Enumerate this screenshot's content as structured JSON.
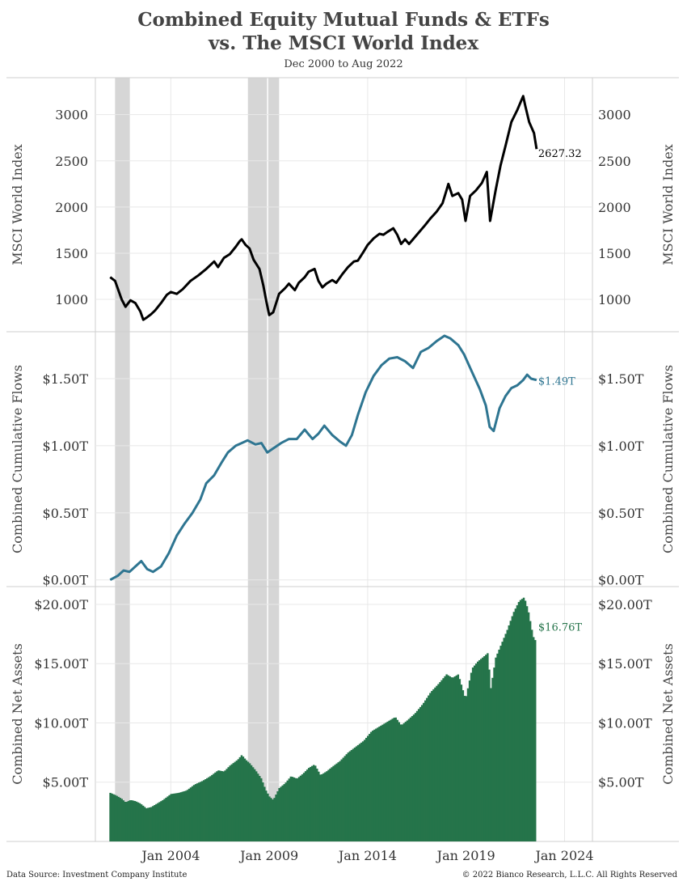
{
  "title_line1": "Combined Equity Mutual Funds & ETFs",
  "title_line2": "vs. The MSCI World Index",
  "subtitle": "Dec 2000 to Aug 2022",
  "footer_source": "Data Source: Investment Company Institute",
  "footer_copyright": "© 2022 Bianco Research, L.L.C. All Rights Reserved",
  "colors": {
    "msci": "#000000",
    "flows": "#2e7591",
    "assets": "#25744a",
    "recession": "#d6d6d6",
    "grid": "#e8e8e8"
  },
  "chart_data": {
    "type": "line",
    "x_ticks": [
      "Jan 2004",
      "Jan 2009",
      "Jan 2014",
      "Jan 2019",
      "Jan 2024"
    ],
    "x_range": [
      "2000-03",
      "2025-06"
    ],
    "recessions": [
      [
        "2001-03",
        "2001-11"
      ],
      [
        "2007-12",
        "2009-06"
      ]
    ],
    "panels": [
      {
        "id": "msci",
        "ylabel": "MSCI World Index",
        "ytick_labels": [
          "1000",
          "1500",
          "2000",
          "2500",
          "3000"
        ],
        "ytick_values": [
          1000,
          1500,
          2000,
          2500,
          3000
        ],
        "ylim": [
          650,
          3400
        ],
        "last_label": "2627.32",
        "series": {
          "x": [
            2000.92,
            2001.17,
            2001.5,
            2001.7,
            2001.95,
            2002.2,
            2002.45,
            2002.6,
            2002.75,
            2003.0,
            2003.2,
            2003.5,
            2003.8,
            2004.0,
            2004.3,
            2004.6,
            2005.0,
            2005.4,
            2005.8,
            2006.2,
            2006.4,
            2006.7,
            2007.0,
            2007.3,
            2007.5,
            2007.6,
            2007.8,
            2008.0,
            2008.2,
            2008.5,
            2008.7,
            2008.85,
            2009.0,
            2009.2,
            2009.5,
            2009.8,
            2010.0,
            2010.3,
            2010.5,
            2010.8,
            2011.0,
            2011.3,
            2011.5,
            2011.7,
            2011.9,
            2012.2,
            2012.4,
            2012.7,
            2013.0,
            2013.3,
            2013.5,
            2013.8,
            2014.0,
            2014.3,
            2014.6,
            2014.8,
            2015.0,
            2015.3,
            2015.5,
            2015.7,
            2015.9,
            2016.1,
            2016.5,
            2016.9,
            2017.2,
            2017.5,
            2017.8,
            2018.0,
            2018.1,
            2018.3,
            2018.6,
            2018.8,
            2018.97,
            2019.2,
            2019.5,
            2019.8,
            2020.05,
            2020.22,
            2020.5,
            2020.75,
            2021.0,
            2021.3,
            2021.6,
            2021.9,
            2022.0,
            2022.2,
            2022.45,
            2022.58
          ],
          "values": [
            1240,
            1200,
            1000,
            920,
            990,
            960,
            870,
            780,
            800,
            840,
            880,
            960,
            1050,
            1080,
            1060,
            1110,
            1200,
            1260,
            1330,
            1410,
            1350,
            1450,
            1490,
            1570,
            1630,
            1650,
            1590,
            1550,
            1430,
            1330,
            1150,
            980,
            830,
            860,
            1060,
            1120,
            1170,
            1100,
            1180,
            1240,
            1300,
            1330,
            1200,
            1130,
            1170,
            1210,
            1180,
            1270,
            1350,
            1410,
            1420,
            1520,
            1590,
            1660,
            1710,
            1700,
            1730,
            1770,
            1700,
            1600,
            1650,
            1600,
            1700,
            1800,
            1880,
            1950,
            2040,
            2180,
            2250,
            2120,
            2150,
            2080,
            1850,
            2120,
            2180,
            2260,
            2380,
            1850,
            2180,
            2450,
            2660,
            2920,
            3050,
            3200,
            3100,
            2920,
            2800,
            2627.32
          ]
        }
      },
      {
        "id": "flows",
        "ylabel": "Combined Cumulative Flows",
        "ytick_labels": [
          "$0.00T",
          "$0.50T",
          "$1.00T",
          "$1.50T"
        ],
        "ytick_values": [
          0,
          0.5,
          1.0,
          1.5
        ],
        "ylim": [
          -0.05,
          1.85
        ],
        "last_label": "$1.49T",
        "series": {
          "x": [
            2000.92,
            2001.3,
            2001.6,
            2001.9,
            2002.2,
            2002.5,
            2002.8,
            2003.1,
            2003.5,
            2003.9,
            2004.3,
            2004.7,
            2005.1,
            2005.5,
            2005.8,
            2006.2,
            2006.6,
            2006.9,
            2007.3,
            2007.6,
            2007.9,
            2008.3,
            2008.6,
            2008.9,
            2009.2,
            2009.6,
            2010.0,
            2010.4,
            2010.8,
            2011.2,
            2011.5,
            2011.8,
            2012.2,
            2012.6,
            2012.9,
            2013.2,
            2013.5,
            2013.9,
            2014.3,
            2014.7,
            2015.1,
            2015.5,
            2015.9,
            2016.3,
            2016.7,
            2017.1,
            2017.5,
            2017.9,
            2018.2,
            2018.6,
            2018.9,
            2019.3,
            2019.7,
            2020.0,
            2020.2,
            2020.4,
            2020.7,
            2021.0,
            2021.3,
            2021.6,
            2021.9,
            2022.1,
            2022.3,
            2022.58
          ],
          "values": [
            0.0,
            0.03,
            0.07,
            0.06,
            0.1,
            0.14,
            0.08,
            0.06,
            0.1,
            0.2,
            0.33,
            0.42,
            0.5,
            0.6,
            0.72,
            0.78,
            0.88,
            0.95,
            1.0,
            1.02,
            1.04,
            1.01,
            1.02,
            0.95,
            0.98,
            1.02,
            1.05,
            1.05,
            1.12,
            1.05,
            1.09,
            1.15,
            1.08,
            1.03,
            1.0,
            1.08,
            1.23,
            1.4,
            1.52,
            1.6,
            1.65,
            1.66,
            1.63,
            1.58,
            1.7,
            1.73,
            1.78,
            1.82,
            1.8,
            1.75,
            1.68,
            1.55,
            1.42,
            1.3,
            1.14,
            1.11,
            1.28,
            1.37,
            1.43,
            1.45,
            1.49,
            1.53,
            1.5,
            1.49
          ]
        }
      },
      {
        "id": "assets",
        "ylabel": "Combined Net Assets",
        "ytick_labels": [
          "$5.00T",
          "$10.00T",
          "$15.00T",
          "$20.00T"
        ],
        "ytick_values": [
          5,
          10,
          15,
          20
        ],
        "ylim": [
          0,
          21.5
        ],
        "last_label": "$16.76T",
        "series": {
          "x": [
            2000.92,
            2001.2,
            2001.5,
            2001.7,
            2001.95,
            2002.2,
            2002.45,
            2002.75,
            2003.0,
            2003.3,
            2003.6,
            2004.0,
            2004.4,
            2004.8,
            2005.2,
            2005.6,
            2006.0,
            2006.4,
            2006.7,
            2007.0,
            2007.4,
            2007.6,
            2007.8,
            2008.0,
            2008.3,
            2008.6,
            2008.8,
            2009.0,
            2009.2,
            2009.5,
            2009.8,
            2010.1,
            2010.4,
            2010.7,
            2011.0,
            2011.3,
            2011.6,
            2011.9,
            2012.2,
            2012.6,
            2013.0,
            2013.4,
            2013.8,
            2014.2,
            2014.6,
            2015.0,
            2015.4,
            2015.7,
            2016.0,
            2016.4,
            2016.8,
            2017.2,
            2017.6,
            2018.0,
            2018.3,
            2018.6,
            2018.97,
            2019.3,
            2019.6,
            2019.9,
            2020.1,
            2020.25,
            2020.5,
            2020.8,
            2021.1,
            2021.4,
            2021.7,
            2021.95,
            2022.15,
            2022.4,
            2022.58
          ],
          "values": [
            4.1,
            3.9,
            3.6,
            3.3,
            3.5,
            3.4,
            3.2,
            2.8,
            2.9,
            3.2,
            3.5,
            4.0,
            4.1,
            4.3,
            4.8,
            5.1,
            5.5,
            6.0,
            5.9,
            6.4,
            6.9,
            7.3,
            6.9,
            6.6,
            6.0,
            5.3,
            4.4,
            3.8,
            3.5,
            4.5,
            4.9,
            5.5,
            5.3,
            5.7,
            6.2,
            6.5,
            5.6,
            5.9,
            6.3,
            6.8,
            7.5,
            8.0,
            8.5,
            9.3,
            9.7,
            10.1,
            10.5,
            9.8,
            10.2,
            10.8,
            11.6,
            12.6,
            13.3,
            14.1,
            13.8,
            14.1,
            12.0,
            14.6,
            15.2,
            15.6,
            15.9,
            12.9,
            15.5,
            16.7,
            17.9,
            19.3,
            20.3,
            20.6,
            19.5,
            17.3,
            16.76
          ]
        }
      }
    ]
  }
}
